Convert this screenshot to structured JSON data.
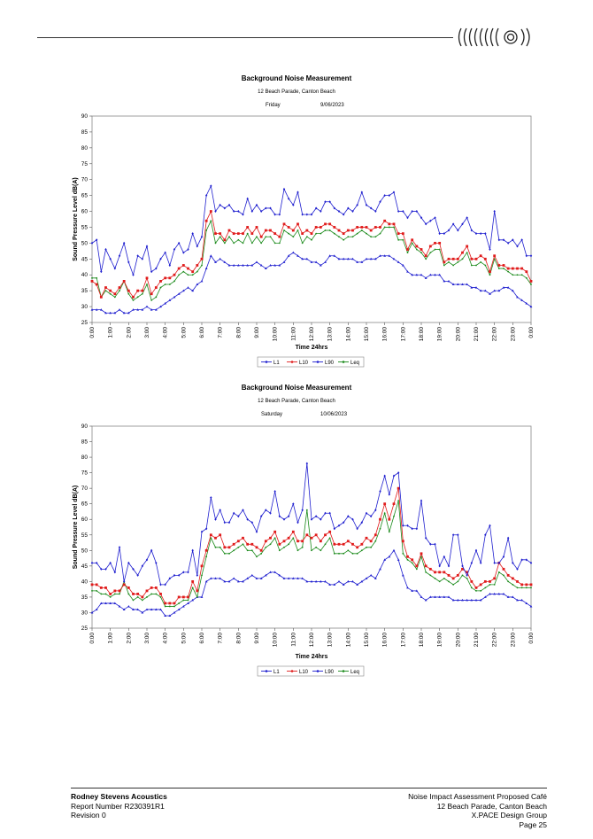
{
  "footer": {
    "company": "Rodney Stevens Acoustics",
    "report_number": "Report Number R230391R1",
    "revision": "Revision 0",
    "doc_title": "Noise Impact Assessment  Proposed Café",
    "address": "12 Beach Parade, Canton Beach",
    "client": "X.PACE Design Group",
    "page": "Page 25"
  },
  "colors": {
    "L1": "#1f1fcf",
    "L10": "#e01b1b",
    "L90": "#1f1fcf",
    "Leq": "#1a8a1a"
  },
  "chart_data": [
    {
      "type": "line",
      "title": "Background Noise Measurement",
      "subtitle": "12 Beach Parade, Canton Beach",
      "day": "Friday",
      "date": "9/06/2023",
      "xlabel": "Time 24hrs",
      "ylabel": "Sound Pressure Level dB(A)",
      "ylim": [
        25,
        90
      ],
      "yticks": [
        "25",
        "30",
        "35",
        "40",
        "45",
        "50",
        "55",
        "60",
        "65",
        "70",
        "75",
        "80",
        "85",
        "90"
      ],
      "xticks": [
        "0:00",
        "1:00",
        "2:00",
        "3:00",
        "4:00",
        "5:00",
        "6:00",
        "7:00",
        "8:00",
        "9:00",
        "10:00",
        "11:00",
        "12:00",
        "13:00",
        "14:00",
        "15:00",
        "16:00",
        "17:00",
        "18:00",
        "19:00",
        "20:00",
        "21:00",
        "22:00",
        "23:00",
        "0:00"
      ],
      "legend": [
        "L1",
        "L10",
        "L90",
        "Leq"
      ],
      "legend_position": "bottom",
      "x_hours": [
        0,
        0.25,
        0.5,
        0.75,
        1,
        1.25,
        1.5,
        1.75,
        2,
        2.25,
        2.5,
        2.75,
        3,
        3.25,
        3.5,
        3.75,
        4,
        4.25,
        4.5,
        4.75,
        5,
        5.25,
        5.5,
        5.75,
        6,
        6.25,
        6.5,
        6.75,
        7,
        7.25,
        7.5,
        7.75,
        8,
        8.25,
        8.5,
        8.75,
        9,
        9.25,
        9.5,
        9.75,
        10,
        10.25,
        10.5,
        10.75,
        11,
        11.25,
        11.5,
        11.75,
        12,
        12.25,
        12.5,
        12.75,
        13,
        13.25,
        13.5,
        13.75,
        14,
        14.25,
        14.5,
        14.75,
        15,
        15.25,
        15.5,
        15.75,
        16,
        16.25,
        16.5,
        16.75,
        17,
        17.25,
        17.5,
        17.75,
        18,
        18.25,
        18.5,
        18.75,
        19,
        19.25,
        19.5,
        19.75,
        20,
        20.25,
        20.5,
        20.75,
        21,
        21.25,
        21.5,
        21.75,
        22,
        22.25,
        22.5,
        22.75,
        23,
        23.25,
        23.5,
        23.75,
        24
      ],
      "series": [
        {
          "name": "L1",
          "values": [
            50,
            51,
            41,
            48,
            45,
            42,
            46,
            50,
            44,
            40,
            46,
            45,
            49,
            41,
            42,
            45,
            47,
            43,
            48,
            50,
            47,
            48,
            53,
            49,
            52,
            65,
            68,
            60,
            62,
            61,
            62,
            60,
            60,
            59,
            64,
            60,
            62,
            60,
            61,
            61,
            59,
            59,
            67,
            64,
            62,
            66,
            59,
            59,
            59,
            61,
            60,
            63,
            63,
            61,
            60,
            59,
            61,
            60,
            62,
            66,
            62,
            61,
            60,
            63,
            65,
            65,
            66,
            60,
            60,
            58,
            60,
            60,
            58,
            56,
            57,
            58,
            53,
            53,
            54,
            56,
            54,
            56,
            58,
            54,
            53,
            53,
            53,
            48,
            60,
            51,
            51,
            50,
            51,
            49,
            51,
            46,
            46
          ]
        },
        {
          "name": "L10",
          "values": [
            38,
            37,
            33,
            36,
            35,
            34,
            36,
            38,
            35,
            33,
            35,
            35,
            39,
            34,
            36,
            38,
            39,
            39,
            40,
            42,
            43,
            42,
            41,
            43,
            45,
            57,
            60,
            53,
            53,
            51,
            54,
            53,
            53,
            53,
            55,
            53,
            55,
            52,
            54,
            54,
            53,
            52,
            56,
            55,
            54,
            56,
            53,
            54,
            53,
            55,
            55,
            56,
            56,
            55,
            54,
            53,
            54,
            54,
            55,
            55,
            55,
            54,
            55,
            55,
            57,
            56,
            56,
            53,
            53,
            48,
            51,
            49,
            48,
            46,
            49,
            50,
            50,
            44,
            45,
            45,
            45,
            47,
            49,
            45,
            45,
            46,
            45,
            41,
            46,
            43,
            43,
            42,
            42,
            42,
            42,
            41,
            38
          ]
        },
        {
          "name": "L90",
          "values": [
            29,
            29,
            29,
            28,
            28,
            28,
            29,
            28,
            28,
            29,
            29,
            29,
            30,
            29,
            29,
            30,
            31,
            32,
            33,
            34,
            35,
            36,
            35,
            37,
            38,
            42,
            46,
            44,
            45,
            44,
            43,
            43,
            43,
            43,
            43,
            43,
            44,
            43,
            42,
            43,
            43,
            43,
            44,
            46,
            47,
            46,
            45,
            45,
            44,
            44,
            43,
            44,
            46,
            46,
            45,
            45,
            45,
            45,
            44,
            44,
            45,
            45,
            45,
            46,
            46,
            46,
            45,
            44,
            43,
            41,
            40,
            40,
            40,
            39,
            40,
            40,
            40,
            38,
            38,
            37,
            37,
            37,
            37,
            36,
            36,
            35,
            35,
            34,
            35,
            35,
            36,
            36,
            35,
            33,
            32,
            31,
            30
          ]
        },
        {
          "name": "Leq",
          "values": [
            39,
            39,
            33,
            35,
            34,
            33,
            35,
            38,
            34,
            32,
            33,
            34,
            37,
            32,
            33,
            36,
            37,
            37,
            38,
            40,
            41,
            40,
            40,
            41,
            43,
            54,
            57,
            50,
            52,
            50,
            52,
            50,
            51,
            50,
            53,
            50,
            52,
            50,
            52,
            52,
            50,
            50,
            54,
            53,
            52,
            54,
            50,
            52,
            51,
            53,
            53,
            54,
            54,
            53,
            52,
            51,
            52,
            52,
            53,
            54,
            53,
            52,
            52,
            53,
            55,
            55,
            55,
            51,
            51,
            47,
            50,
            48,
            47,
            45,
            47,
            48,
            48,
            43,
            44,
            43,
            44,
            45,
            47,
            43,
            43,
            44,
            43,
            40,
            45,
            42,
            42,
            41,
            40,
            40,
            40,
            39,
            37
          ]
        }
      ]
    },
    {
      "type": "line",
      "title": "Background Noise Measurement",
      "subtitle": "12 Beach Parade, Canton Beach",
      "day": "Saturday",
      "date": "10/06/2023",
      "xlabel": "Time 24hrs",
      "ylabel": "Sound Pressure Level dB(A)",
      "ylim": [
        25,
        90
      ],
      "yticks": [
        "25",
        "30",
        "35",
        "40",
        "45",
        "50",
        "55",
        "60",
        "65",
        "70",
        "75",
        "80",
        "85",
        "90"
      ],
      "xticks": [
        "0:00",
        "1:00",
        "2:00",
        "3:00",
        "4:00",
        "5:00",
        "6:00",
        "7:00",
        "8:00",
        "9:00",
        "10:00",
        "11:00",
        "12:00",
        "13:00",
        "14:00",
        "15:00",
        "16:00",
        "17:00",
        "18:00",
        "19:00",
        "20:00",
        "21:00",
        "22:00",
        "23:00",
        "0:00"
      ],
      "legend": [
        "L1",
        "L10",
        "L90",
        "Leq"
      ],
      "legend_position": "bottom",
      "x_hours": [
        0,
        0.25,
        0.5,
        0.75,
        1,
        1.25,
        1.5,
        1.75,
        2,
        2.25,
        2.5,
        2.75,
        3,
        3.25,
        3.5,
        3.75,
        4,
        4.25,
        4.5,
        4.75,
        5,
        5.25,
        5.5,
        5.75,
        6,
        6.25,
        6.5,
        6.75,
        7,
        7.25,
        7.5,
        7.75,
        8,
        8.25,
        8.5,
        8.75,
        9,
        9.25,
        9.5,
        9.75,
        10,
        10.25,
        10.5,
        10.75,
        11,
        11.25,
        11.5,
        11.75,
        12,
        12.25,
        12.5,
        12.75,
        13,
        13.25,
        13.5,
        13.75,
        14,
        14.25,
        14.5,
        14.75,
        15,
        15.25,
        15.5,
        15.75,
        16,
        16.25,
        16.5,
        16.75,
        17,
        17.25,
        17.5,
        17.75,
        18,
        18.25,
        18.5,
        18.75,
        19,
        19.25,
        19.5,
        19.75,
        20,
        20.25,
        20.5,
        20.75,
        21,
        21.25,
        21.5,
        21.75,
        22,
        22.25,
        22.5,
        22.75,
        23,
        23.25,
        23.5,
        23.75,
        24
      ],
      "series": [
        {
          "name": "L1",
          "values": [
            46,
            46,
            44,
            44,
            46,
            43,
            51,
            40,
            46,
            44,
            42,
            45,
            47,
            50,
            46,
            39,
            39,
            41,
            42,
            42,
            43,
            43,
            50,
            42,
            56,
            57,
            67,
            60,
            63,
            59,
            59,
            62,
            61,
            63,
            60,
            59,
            56,
            61,
            63,
            62,
            69,
            61,
            60,
            61,
            65,
            59,
            63,
            78,
            60,
            61,
            60,
            62,
            62,
            57,
            58,
            59,
            61,
            60,
            57,
            59,
            62,
            61,
            63,
            69,
            74,
            68,
            74,
            75,
            58,
            58,
            57,
            57,
            66,
            54,
            52,
            52,
            45,
            48,
            45,
            55,
            55,
            45,
            42,
            46,
            50,
            46,
            55,
            58,
            46,
            46,
            48,
            54,
            46,
            44,
            47,
            47,
            46
          ]
        },
        {
          "name": "L10",
          "values": [
            39,
            39,
            38,
            38,
            36,
            37,
            37,
            39,
            38,
            36,
            36,
            35,
            37,
            38,
            38,
            36,
            33,
            33,
            33,
            35,
            35,
            35,
            40,
            37,
            45,
            50,
            55,
            54,
            55,
            51,
            51,
            52,
            53,
            54,
            52,
            52,
            51,
            50,
            53,
            54,
            56,
            52,
            53,
            54,
            56,
            53,
            53,
            55,
            54,
            55,
            53,
            55,
            56,
            52,
            52,
            52,
            53,
            52,
            51,
            52,
            54,
            53,
            55,
            60,
            65,
            60,
            65,
            70,
            53,
            48,
            47,
            45,
            49,
            45,
            44,
            43,
            43,
            43,
            42,
            41,
            42,
            44,
            43,
            40,
            38,
            39,
            40,
            40,
            41,
            46,
            44,
            42,
            41,
            40,
            39,
            39,
            39
          ]
        },
        {
          "name": "L90",
          "values": [
            30,
            31,
            33,
            33,
            33,
            33,
            32,
            31,
            32,
            31,
            31,
            30,
            31,
            31,
            31,
            31,
            29,
            29,
            30,
            31,
            32,
            33,
            34,
            35,
            35,
            40,
            41,
            41,
            41,
            40,
            40,
            41,
            40,
            40,
            41,
            42,
            41,
            41,
            42,
            43,
            43,
            42,
            41,
            41,
            41,
            41,
            41,
            40,
            40,
            40,
            40,
            40,
            39,
            39,
            40,
            39,
            40,
            40,
            39,
            40,
            41,
            42,
            41,
            44,
            47,
            48,
            50,
            47,
            42,
            38,
            37,
            37,
            35,
            34,
            35,
            35,
            35,
            35,
            35,
            34,
            34,
            34,
            34,
            34,
            34,
            34,
            35,
            36,
            36,
            36,
            36,
            35,
            35,
            34,
            34,
            33,
            32
          ]
        },
        {
          "name": "Leq",
          "values": [
            37,
            37,
            36,
            36,
            35,
            36,
            36,
            40,
            36,
            34,
            35,
            34,
            35,
            36,
            36,
            35,
            32,
            32,
            32,
            33,
            34,
            34,
            38,
            35,
            42,
            48,
            54,
            51,
            51,
            49,
            49,
            50,
            51,
            52,
            50,
            50,
            48,
            49,
            51,
            52,
            54,
            50,
            51,
            52,
            54,
            50,
            51,
            63,
            50,
            51,
            50,
            52,
            54,
            49,
            49,
            49,
            50,
            49,
            49,
            50,
            51,
            51,
            53,
            57,
            62,
            56,
            61,
            66,
            49,
            47,
            46,
            44,
            48,
            43,
            42,
            41,
            40,
            41,
            40,
            39,
            40,
            42,
            41,
            38,
            37,
            37,
            38,
            39,
            39,
            43,
            42,
            40,
            39,
            38,
            38,
            38,
            38
          ]
        }
      ]
    }
  ]
}
